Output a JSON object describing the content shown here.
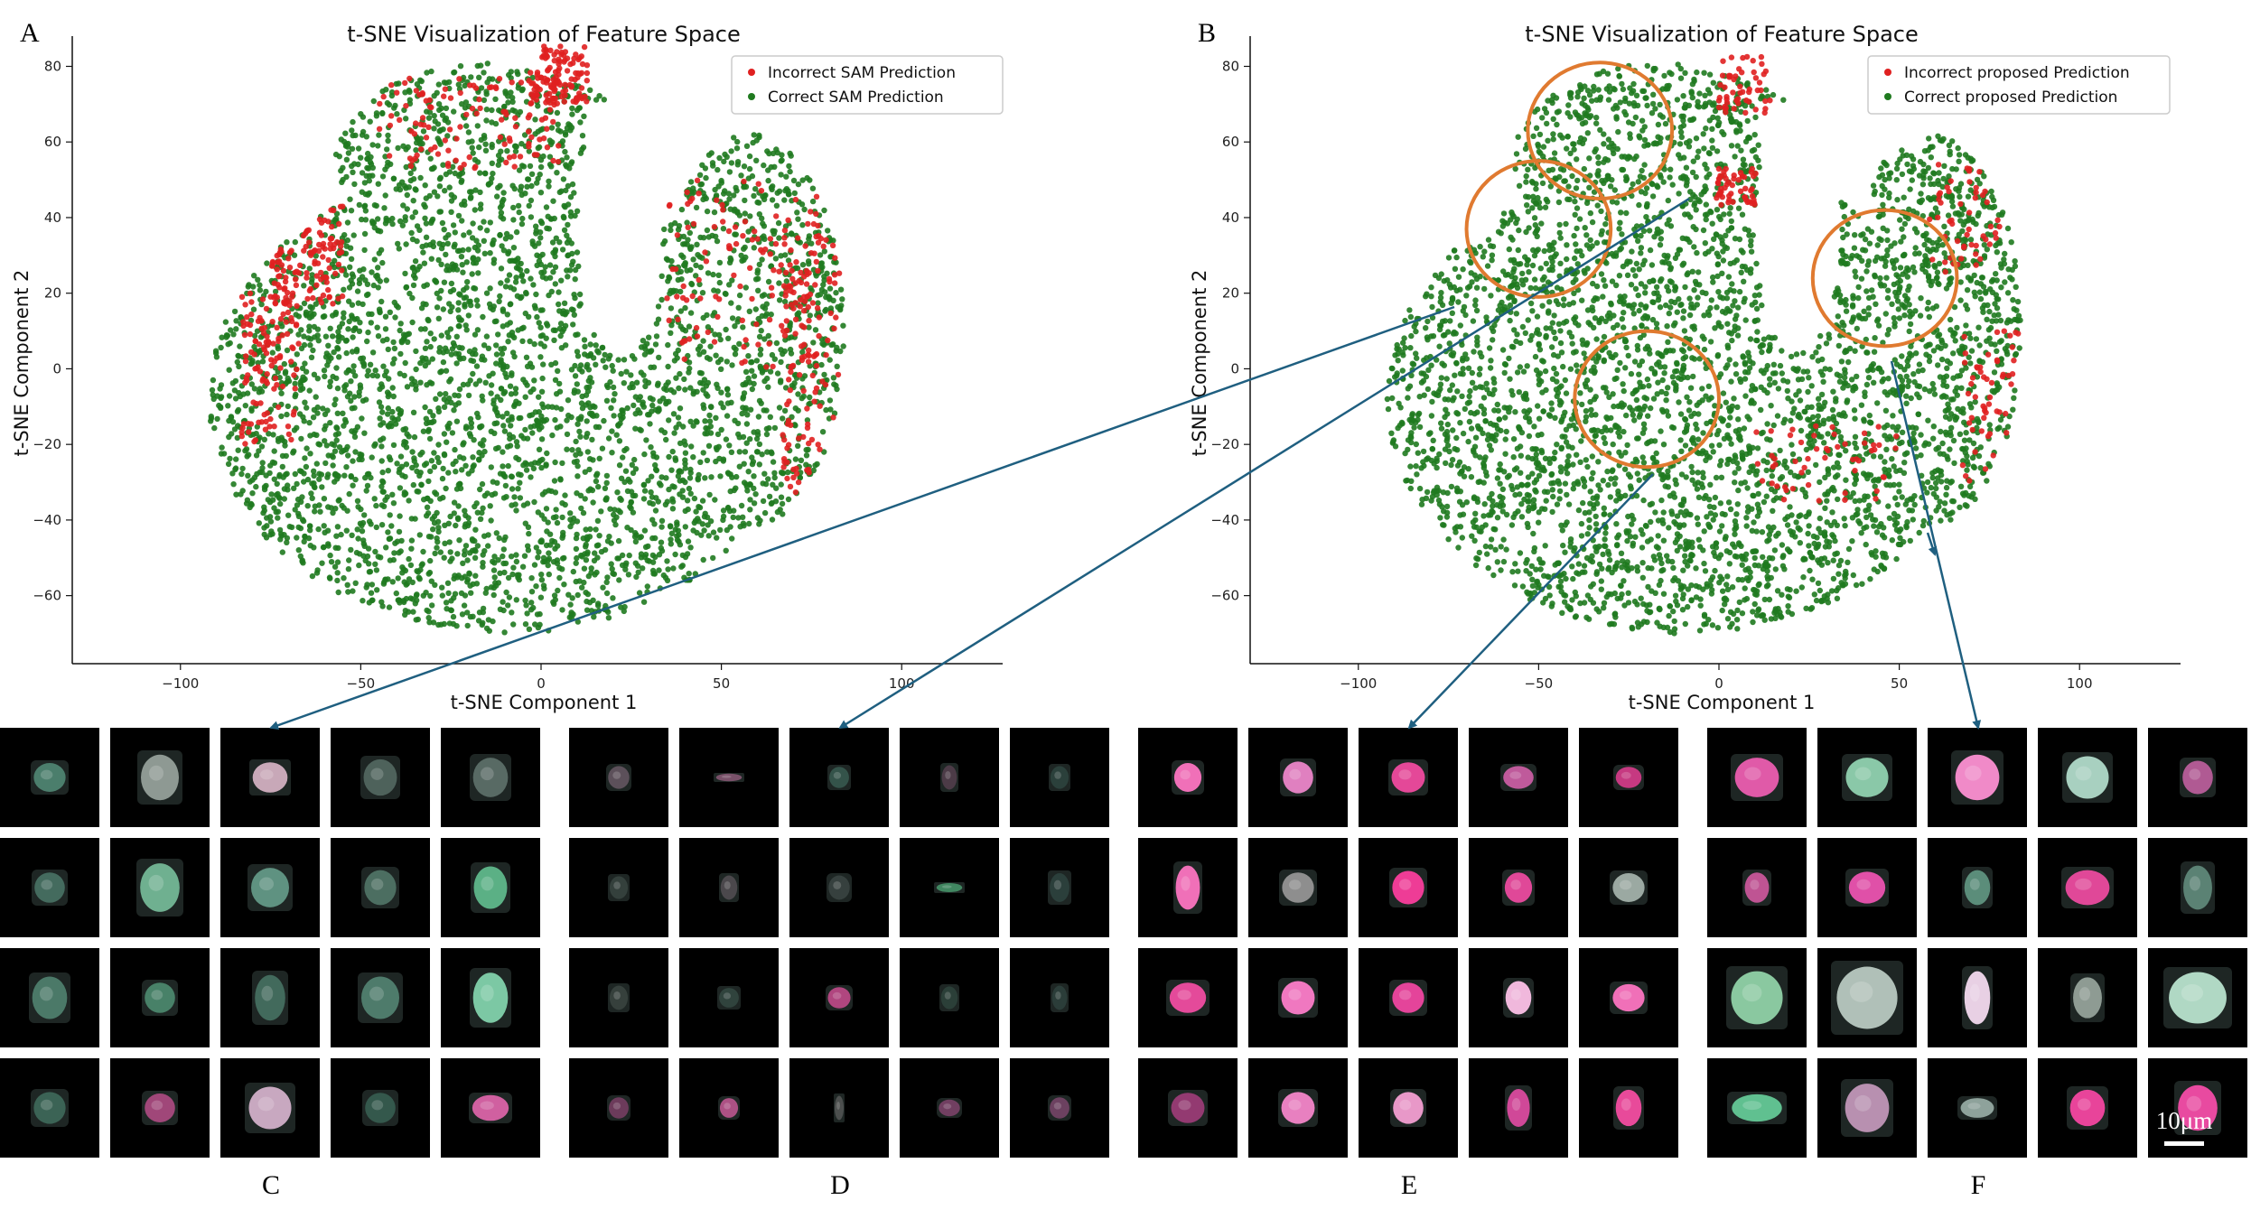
{
  "panel_letters": {
    "a": "A",
    "b": "B",
    "c": "C",
    "d": "D",
    "e": "E",
    "f": "F"
  },
  "colors": {
    "incorrect": "#e02020",
    "correct": "#1f7a1f",
    "circle": "#e07a30",
    "arrow": "#1f5f80"
  },
  "chart_data": [
    {
      "type": "scatter",
      "panel": "A",
      "title": "t-SNE Visualization of Feature Space",
      "xlabel": "t-SNE Component 1",
      "ylabel": "t-SNE Component 2",
      "xlim": [
        -130,
        128
      ],
      "ylim": [
        -78,
        88
      ],
      "xticks": [
        -100,
        -50,
        0,
        50,
        100
      ],
      "yticks": [
        -60,
        -40,
        -20,
        0,
        20,
        40,
        60,
        80
      ],
      "grid": false,
      "legend_position": "top-right",
      "series": [
        {
          "name": "Incorrect SAM Prediction",
          "color": "#e02020"
        },
        {
          "name": "Correct SAM Prediction",
          "color": "#1f7a1f"
        }
      ],
      "point_counts": {
        "incorrect": 700,
        "correct": 3800
      },
      "incorrect_regions": [
        [
          -65,
          35,
          10,
          18
        ],
        [
          -20,
          65,
          25,
          12
        ],
        [
          5,
          78,
          8,
          8
        ],
        [
          55,
          25,
          22,
          25
        ],
        [
          75,
          0,
          8,
          35
        ],
        [
          -75,
          0,
          8,
          20
        ]
      ]
    },
    {
      "type": "scatter",
      "panel": "B",
      "title": "t-SNE Visualization of Feature Space",
      "xlabel": "t-SNE Component 1",
      "ylabel": "t-SNE Component 2",
      "xlim": [
        -130,
        128
      ],
      "ylim": [
        -78,
        88
      ],
      "xticks": [
        -100,
        -50,
        0,
        50,
        100
      ],
      "yticks": [
        -60,
        -40,
        -20,
        0,
        20,
        40,
        60,
        80
      ],
      "grid": false,
      "legend_position": "top-right",
      "series": [
        {
          "name": "Incorrect proposed Prediction",
          "color": "#e02020"
        },
        {
          "name": "Correct proposed Prediction",
          "color": "#1f7a1f"
        }
      ],
      "point_counts": {
        "incorrect": 260,
        "correct": 4200
      },
      "incorrect_regions": [
        [
          8,
          75,
          8,
          8
        ],
        [
          5,
          48,
          6,
          5
        ],
        [
          68,
          40,
          10,
          15
        ],
        [
          75,
          -10,
          8,
          20
        ],
        [
          30,
          -25,
          20,
          10
        ]
      ],
      "highlight_circles": [
        {
          "cx": -50,
          "cy": 37,
          "rx": 20,
          "ry": 18
        },
        {
          "cx": -33,
          "cy": 63,
          "rx": 20,
          "ry": 18
        },
        {
          "cx": -20,
          "cy": -8,
          "rx": 20,
          "ry": 18
        },
        {
          "cx": 46,
          "cy": 24,
          "rx": 20,
          "ry": 18
        }
      ]
    }
  ],
  "cell_grids": [
    {
      "label": "C",
      "cells": [
        {
          "w": 42,
          "h": 38,
          "c": "#5ea48c",
          "b": 0.7,
          "r": 6
        },
        {
          "w": 50,
          "h": 60,
          "c": "#9aa6a0",
          "b": 0.9,
          "r": 14
        },
        {
          "w": 46,
          "h": 40,
          "c": "#c8a8b8",
          "b": 1.0,
          "r": 4
        },
        {
          "w": 44,
          "h": 48,
          "c": "#6e8a80",
          "b": 0.6,
          "r": 10
        },
        {
          "w": 46,
          "h": 52,
          "c": "#7e9890",
          "b": 0.6,
          "r": 12
        },
        {
          "w": 40,
          "h": 40,
          "c": "#5e9a86",
          "b": 0.6,
          "r": 8
        },
        {
          "w": 52,
          "h": 64,
          "c": "#78c09c",
          "b": 0.9,
          "r": 12
        },
        {
          "w": 50,
          "h": 52,
          "c": "#6fae98",
          "b": 0.8,
          "r": 12
        },
        {
          "w": 42,
          "h": 46,
          "c": "#6a9e8a",
          "b": 0.6,
          "r": 10
        },
        {
          "w": 44,
          "h": 56,
          "c": "#62c090",
          "b": 0.9,
          "r": 12
        },
        {
          "w": 46,
          "h": 56,
          "c": "#5e9c86",
          "b": 0.7,
          "r": 10
        },
        {
          "w": 40,
          "h": 40,
          "c": "#5aa886",
          "b": 0.7,
          "r": 8
        },
        {
          "w": 40,
          "h": 60,
          "c": "#5a9882",
          "b": 0.6,
          "r": 8
        },
        {
          "w": 50,
          "h": 56,
          "c": "#62a08a",
          "b": 0.7,
          "r": 12
        },
        {
          "w": 46,
          "h": 66,
          "c": "#7cc8a4",
          "b": 1.0,
          "r": 12
        },
        {
          "w": 42,
          "h": 42,
          "c": "#4e8c76",
          "b": 0.6,
          "r": 6
        },
        {
          "w": 40,
          "h": 38,
          "c": "#c0508e",
          "b": 0.8,
          "r": 14
        },
        {
          "w": 56,
          "h": 56,
          "c": "#c8a8c0",
          "b": 1.0,
          "r": 20
        },
        {
          "w": 40,
          "h": 40,
          "c": "#4a8a74",
          "b": 0.5,
          "r": 6
        },
        {
          "w": 48,
          "h": 34,
          "c": "#d060a0",
          "b": 1.0,
          "r": 14
        }
      ]
    },
    {
      "label": "D",
      "cells": [
        {
          "w": 28,
          "h": 30,
          "c": "#9a7a90",
          "b": 0.5,
          "r": 6
        },
        {
          "w": 34,
          "h": 10,
          "c": "#a06488",
          "b": 0.7,
          "r": 2
        },
        {
          "w": 26,
          "h": 28,
          "c": "#4a8070",
          "b": 0.5,
          "r": 4
        },
        {
          "w": 20,
          "h": 32,
          "c": "#7a506a",
          "b": 0.5,
          "r": 4
        },
        {
          "w": 24,
          "h": 30,
          "c": "#3e6a5e",
          "b": 0.4,
          "r": 4
        },
        {
          "w": 24,
          "h": 30,
          "c": "#556a62",
          "b": 0.4,
          "r": 4
        },
        {
          "w": 22,
          "h": 32,
          "c": "#786a74",
          "b": 0.5,
          "r": 4
        },
        {
          "w": 28,
          "h": 32,
          "c": "#5a6a66",
          "b": 0.4,
          "r": 6
        },
        {
          "w": 34,
          "h": 12,
          "c": "#4aa070",
          "b": 0.8,
          "r": 2
        },
        {
          "w": 26,
          "h": 38,
          "c": "#3e6660",
          "b": 0.4,
          "r": 4
        },
        {
          "w": 24,
          "h": 32,
          "c": "#5a6862",
          "b": 0.4,
          "r": 4
        },
        {
          "w": 26,
          "h": 26,
          "c": "#4a7064",
          "b": 0.4,
          "r": 4
        },
        {
          "w": 30,
          "h": 28,
          "c": "#c04a8a",
          "b": 0.9,
          "r": 10
        },
        {
          "w": 22,
          "h": 30,
          "c": "#3e6658",
          "b": 0.4,
          "r": 4
        },
        {
          "w": 20,
          "h": 32,
          "c": "#3e625a",
          "b": 0.4,
          "r": 4
        },
        {
          "w": 26,
          "h": 28,
          "c": "#a04a80",
          "b": 0.6,
          "r": 6
        },
        {
          "w": 24,
          "h": 26,
          "c": "#d05c9c",
          "b": 0.8,
          "r": 8
        },
        {
          "w": 12,
          "h": 32,
          "c": "#6a6a6a",
          "b": 0.6,
          "r": 2
        },
        {
          "w": 28,
          "h": 22,
          "c": "#a8508a",
          "b": 0.6,
          "r": 6
        },
        {
          "w": 26,
          "h": 28,
          "c": "#a05488",
          "b": 0.6,
          "r": 6
        }
      ]
    },
    {
      "label": "E",
      "cells": [
        {
          "w": 36,
          "h": 38,
          "c": "#f070b8",
          "b": 1.0,
          "r": 16
        },
        {
          "w": 40,
          "h": 42,
          "c": "#e080c0",
          "b": 1.0,
          "r": 16
        },
        {
          "w": 44,
          "h": 40,
          "c": "#e44898",
          "b": 1.0,
          "r": 16
        },
        {
          "w": 40,
          "h": 30,
          "c": "#d060a8",
          "b": 0.9,
          "r": 14
        },
        {
          "w": 34,
          "h": 28,
          "c": "#d83c8c",
          "b": 0.9,
          "r": 12
        },
        {
          "w": 32,
          "h": 58,
          "c": "#f070b8",
          "b": 1.0,
          "r": 12
        },
        {
          "w": 42,
          "h": 40,
          "c": "#9a9a9a",
          "b": 0.9,
          "r": 8
        },
        {
          "w": 42,
          "h": 44,
          "c": "#ee3c96",
          "b": 1.0,
          "r": 18
        },
        {
          "w": 36,
          "h": 40,
          "c": "#e04898",
          "b": 1.0,
          "r": 16
        },
        {
          "w": 42,
          "h": 38,
          "c": "#a8b8b0",
          "b": 0.9,
          "r": 10
        },
        {
          "w": 48,
          "h": 40,
          "c": "#e44a9a",
          "b": 1.0,
          "r": 18
        },
        {
          "w": 44,
          "h": 44,
          "c": "#f078c0",
          "b": 1.0,
          "r": 18
        },
        {
          "w": 42,
          "h": 40,
          "c": "#e4449a",
          "b": 1.0,
          "r": 18
        },
        {
          "w": 34,
          "h": 44,
          "c": "#f0b8dc",
          "b": 1.0,
          "r": 14
        },
        {
          "w": 42,
          "h": 36,
          "c": "#f070b8",
          "b": 1.0,
          "r": 16
        },
        {
          "w": 44,
          "h": 40,
          "c": "#b04084",
          "b": 0.8,
          "r": 16
        },
        {
          "w": 44,
          "h": 42,
          "c": "#e880c0",
          "b": 1.0,
          "r": 18
        },
        {
          "w": 40,
          "h": 42,
          "c": "#e898c8",
          "b": 1.0,
          "r": 16
        },
        {
          "w": 30,
          "h": 50,
          "c": "#d04898",
          "b": 1.0,
          "r": 12
        },
        {
          "w": 34,
          "h": 48,
          "c": "#e84a9a",
          "b": 1.0,
          "r": 14
        }
      ]
    },
    {
      "label": "F",
      "cells": [
        {
          "w": 58,
          "h": 52,
          "c": "#e05aa8",
          "b": 1.0,
          "r": 18
        },
        {
          "w": 56,
          "h": 52,
          "c": "#8ac8a8",
          "b": 1.0,
          "r": 10
        },
        {
          "w": 58,
          "h": 60,
          "c": "#f08ac8",
          "b": 1.0,
          "r": 20
        },
        {
          "w": 56,
          "h": 56,
          "c": "#a8d0c0",
          "b": 1.0,
          "r": 12
        },
        {
          "w": 40,
          "h": 44,
          "c": "#c060a0",
          "b": 0.9,
          "r": 12
        },
        {
          "w": 32,
          "h": 40,
          "c": "#d05aa0",
          "b": 0.9,
          "r": 10
        },
        {
          "w": 48,
          "h": 42,
          "c": "#e050a8",
          "b": 1.0,
          "r": 14
        },
        {
          "w": 34,
          "h": 46,
          "c": "#6aa890",
          "b": 0.8,
          "r": 8
        },
        {
          "w": 58,
          "h": 46,
          "c": "#e04898",
          "b": 1.0,
          "r": 18
        },
        {
          "w": 38,
          "h": 58,
          "c": "#6a9a88",
          "b": 0.8,
          "r": 8
        },
        {
          "w": 68,
          "h": 70,
          "c": "#8ac8a0",
          "b": 1.0,
          "r": 16
        },
        {
          "w": 80,
          "h": 82,
          "c": "#b0c0b8",
          "b": 1.0,
          "r": 18
        },
        {
          "w": 34,
          "h": 70,
          "c": "#e8d0e4",
          "b": 1.0,
          "r": 8
        },
        {
          "w": 38,
          "h": 54,
          "c": "#9aa8a0",
          "b": 0.9,
          "r": 6
        },
        {
          "w": 76,
          "h": 68,
          "c": "#b0d8c4",
          "b": 1.0,
          "r": 16
        },
        {
          "w": 66,
          "h": 36,
          "c": "#60c090",
          "b": 1.0,
          "r": 8
        },
        {
          "w": 58,
          "h": 64,
          "c": "#b890b0",
          "b": 1.0,
          "r": 12
        },
        {
          "w": 44,
          "h": 26,
          "c": "#9ab0a8",
          "b": 0.9,
          "r": 6
        },
        {
          "w": 46,
          "h": 48,
          "c": "#e8449a",
          "b": 1.0,
          "r": 18
        },
        {
          "w": 52,
          "h": 60,
          "c": "#e84aa0",
          "b": 1.0,
          "r": 20
        }
      ]
    }
  ],
  "scale_bar": {
    "label": "10μm"
  }
}
